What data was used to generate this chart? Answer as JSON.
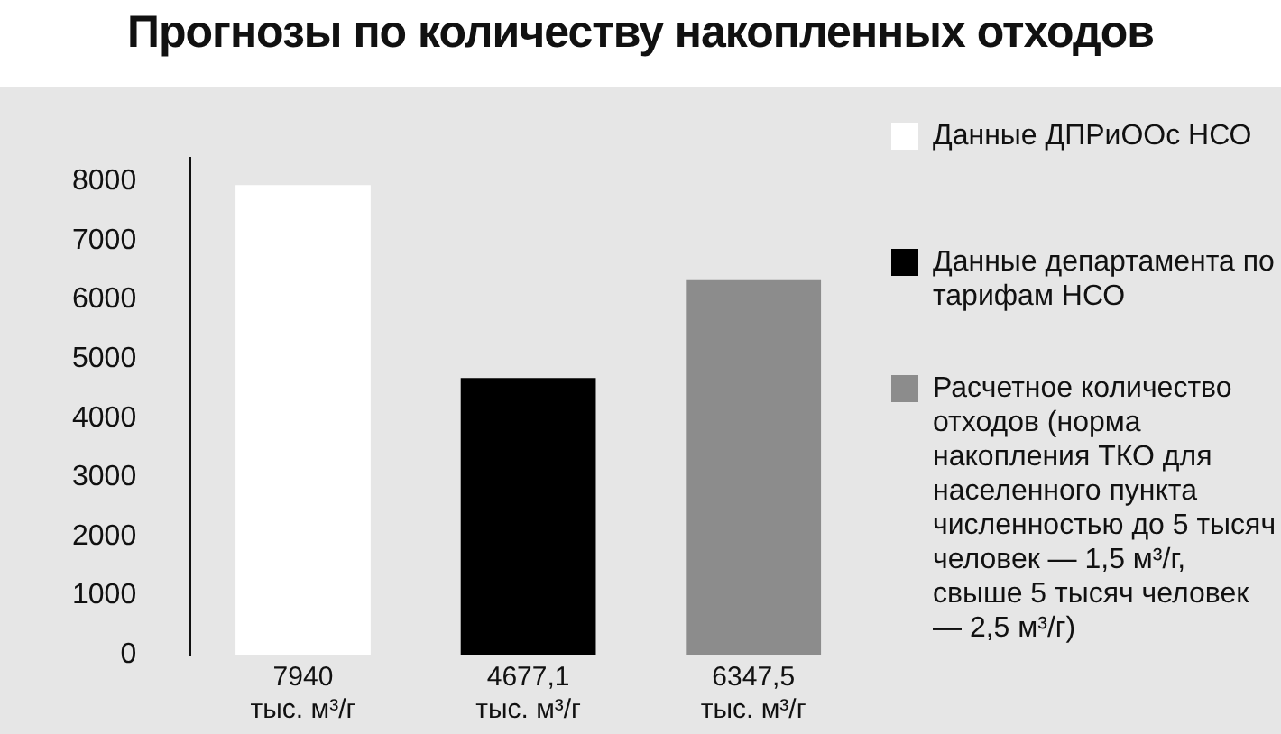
{
  "chart_data": {
    "type": "bar",
    "title": "Прогнозы по количеству накопленных отходов",
    "categories": [
      "7940\nтыс. м³/г",
      "4677,1\nтыс. м³/г",
      "6347,5\nтыс. м³/г"
    ],
    "series": [
      {
        "name": "Данные ДПРиООс НСО",
        "color": "#ffffff",
        "values": [
          7940,
          null,
          null
        ]
      },
      {
        "name": "Данные департамента по тарифам НСО",
        "color": "#000000",
        "values": [
          null,
          4677.1,
          null
        ]
      },
      {
        "name": "Расчетное количество отходов (норма накопления ТКО для населенного пункта численностью до 5 тысяч человек — 1,5 м³/г, свыше 5 тысяч человек — 2,5 м³/г)",
        "color": "#8c8c8c",
        "values": [
          null,
          null,
          6347.5
        ]
      }
    ],
    "ylim": [
      0,
      8400
    ],
    "yticks": [
      0,
      1000,
      2000,
      3000,
      4000,
      5000,
      6000,
      7000,
      8000
    ],
    "grid": false,
    "legend": "right"
  }
}
